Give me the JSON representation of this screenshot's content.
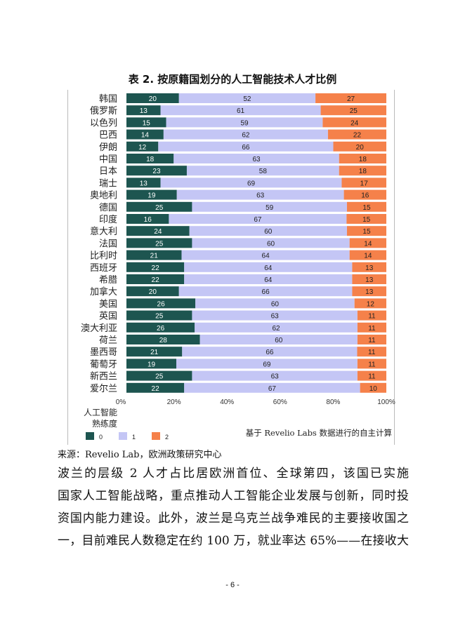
{
  "chart_data": {
    "type": "bar",
    "orientation": "horizontal",
    "stacked": true,
    "title": "表 2. 按原籍国划分的人工智能技术人才比例",
    "categories": [
      "韩国",
      "俄罗斯",
      "以色列",
      "巴西",
      "伊朗",
      "中国",
      "日本",
      "瑞士",
      "奥地利",
      "德国",
      "印度",
      "意大利",
      "法国",
      "比利时",
      "西班牙",
      "希腊",
      "加拿大",
      "美国",
      "英国",
      "澳大利亚",
      "荷兰",
      "墨西哥",
      "葡萄牙",
      "新西兰",
      "爱尔兰"
    ],
    "series": [
      {
        "name": "0",
        "color": "#1d5550",
        "values": [
          20,
          13,
          15,
          14,
          12,
          18,
          23,
          13,
          19,
          25,
          16,
          24,
          25,
          21,
          22,
          22,
          20,
          26,
          25,
          26,
          28,
          21,
          19,
          25,
          22
        ]
      },
      {
        "name": "1",
        "color": "#c4c6f5",
        "values": [
          52,
          61,
          59,
          62,
          66,
          63,
          58,
          69,
          63,
          59,
          67,
          60,
          60,
          64,
          64,
          64,
          66,
          60,
          63,
          62,
          60,
          66,
          69,
          63,
          67
        ]
      },
      {
        "name": "2",
        "color": "#f5814a",
        "values": [
          27,
          25,
          24,
          22,
          20,
          18,
          18,
          17,
          16,
          15,
          15,
          15,
          14,
          14,
          13,
          13,
          13,
          12,
          11,
          11,
          11,
          11,
          11,
          11,
          10
        ]
      }
    ],
    "xticks": [
      "0%",
      "20%",
      "40%",
      "60%",
      "80%",
      "100%"
    ],
    "xlim": [
      0,
      100
    ],
    "legend_title": "人工智能\n熟练度",
    "legend_placement": "bottom-left",
    "annotation": "基于 Revelio Labs 数据进行的自主计算",
    "grid": false
  },
  "source": "来源：Revelio Lab，欧洲政策研究中心",
  "paragraph": [
    "波兰的层级 2 人才占比居欧洲首位、全球第四，该国已实施",
    "国家人工智能战略，重点推动人工智能企业发展与创新，同时投",
    "资国内能力建设。此外，波兰是乌克兰战争难民的主要接收国之",
    "一，目前难民人数稳定在约 100 万，就业率达 65%——在接收大"
  ],
  "page_number": "- 6 -"
}
